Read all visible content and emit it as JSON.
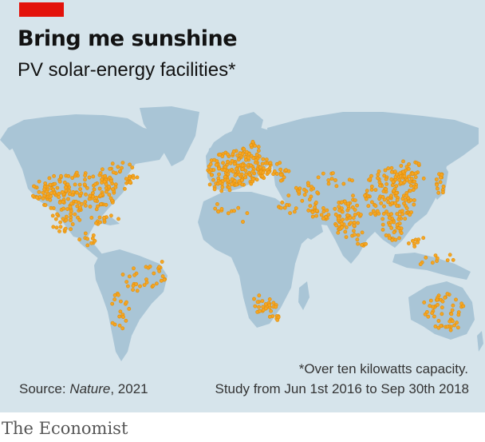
{
  "header": {
    "title": "Bring me sunshine",
    "subtitle": "PV solar-energy facilities*"
  },
  "footer": {
    "note": "*Over ten kilowatts capacity.",
    "source_prefix": "Source: ",
    "source_name": "Nature",
    "source_year": ", 2021",
    "study_period": "Study from Jun 1st 2016 to Sep 30th 2018",
    "brand": "The Economist"
  },
  "colors": {
    "accent": "#e3120b",
    "panel": "#d6e4eb",
    "land": "#a9c5d6",
    "facility_dot": "#f5a623"
  },
  "map": {
    "type": "world dot map",
    "marker": "solar-facility-dot"
  }
}
